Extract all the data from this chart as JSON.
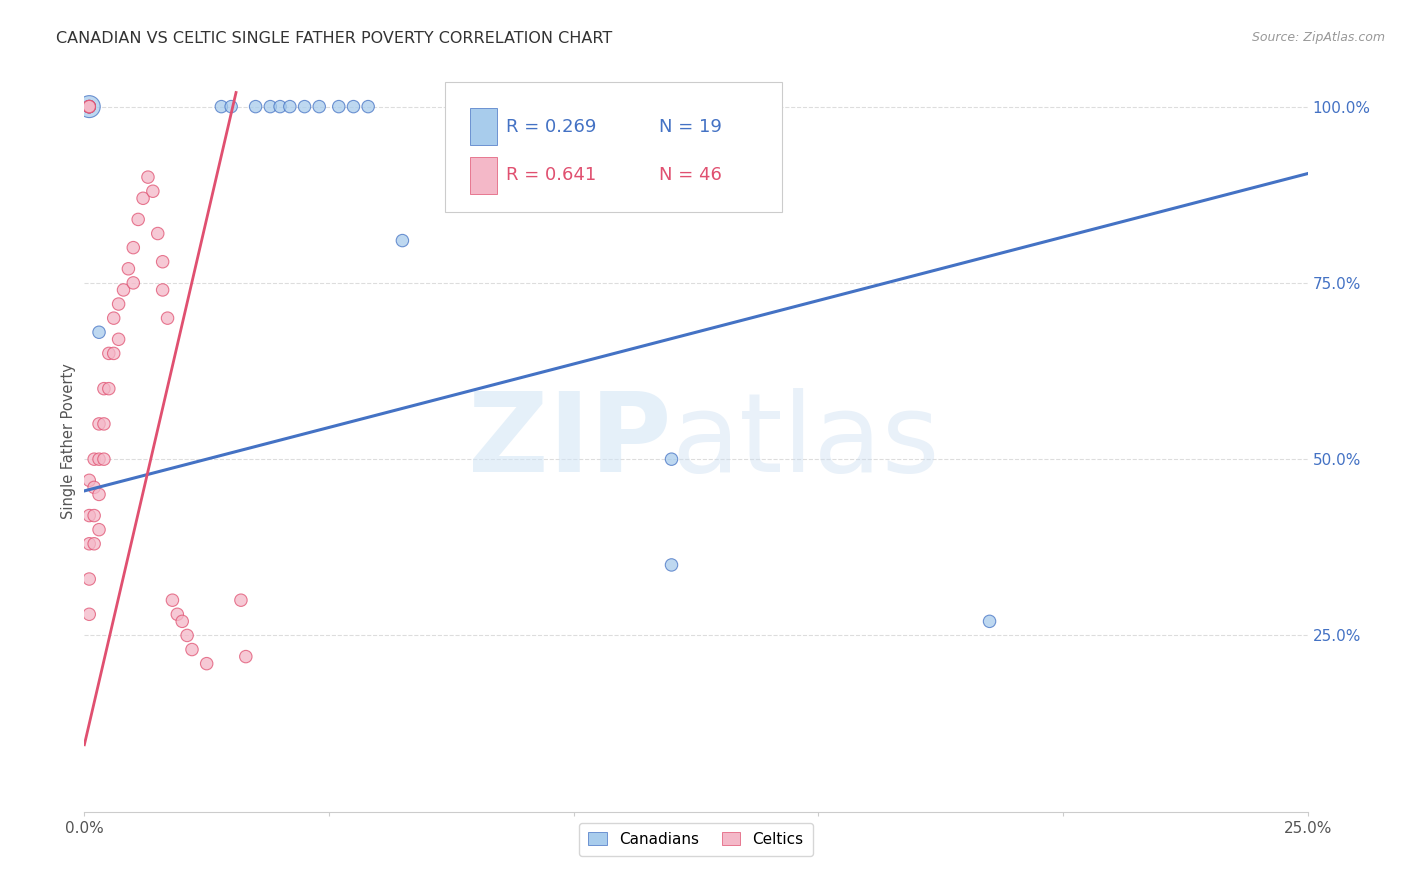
{
  "title": "CANADIAN VS CELTIC SINGLE FATHER POVERTY CORRELATION CHART",
  "source": "Source: ZipAtlas.com",
  "ylabel": "Single Father Poverty",
  "x_min": 0.0,
  "x_max": 0.25,
  "y_min": 0.0,
  "y_max": 1.05,
  "canadian_R": 0.269,
  "canadian_N": 19,
  "celtic_R": 0.641,
  "celtic_N": 46,
  "canadian_color": "#a8ccec",
  "celtic_color": "#f4b8c8",
  "canadian_line_color": "#4472c4",
  "celtic_line_color": "#e05070",
  "background_color": "#ffffff",
  "grid_color": "#dddddd",
  "blue_line_x0": 0.0,
  "blue_line_y0": 0.455,
  "blue_line_x1": 0.25,
  "blue_line_y1": 0.905,
  "pink_line_x0": 0.0,
  "pink_line_y0": 0.095,
  "pink_line_x1": 0.031,
  "pink_line_y1": 1.02,
  "can_x": [
    0.001,
    0.001,
    0.001,
    0.003,
    0.028,
    0.03,
    0.035,
    0.038,
    0.04,
    0.042,
    0.045,
    0.048,
    0.052,
    0.055,
    0.058,
    0.065,
    0.12,
    0.12,
    0.185
  ],
  "can_y": [
    1.0,
    1.0,
    1.0,
    0.68,
    1.0,
    1.0,
    1.0,
    1.0,
    1.0,
    1.0,
    1.0,
    1.0,
    1.0,
    1.0,
    1.0,
    0.81,
    0.35,
    0.5,
    0.27
  ],
  "can_sizes": [
    250,
    80,
    80,
    80,
    80,
    80,
    80,
    80,
    80,
    80,
    80,
    80,
    80,
    80,
    80,
    80,
    80,
    80,
    80
  ],
  "cel_x": [
    0.001,
    0.001,
    0.001,
    0.001,
    0.001,
    0.001,
    0.001,
    0.001,
    0.001,
    0.002,
    0.002,
    0.002,
    0.002,
    0.003,
    0.003,
    0.003,
    0.003,
    0.004,
    0.004,
    0.004,
    0.005,
    0.005,
    0.006,
    0.006,
    0.007,
    0.007,
    0.008,
    0.009,
    0.01,
    0.01,
    0.011,
    0.012,
    0.013,
    0.014,
    0.015,
    0.016,
    0.016,
    0.017,
    0.018,
    0.019,
    0.02,
    0.021,
    0.022,
    0.025,
    0.032,
    0.033
  ],
  "cel_y": [
    1.0,
    1.0,
    1.0,
    1.0,
    0.47,
    0.42,
    0.38,
    0.33,
    0.28,
    0.5,
    0.46,
    0.42,
    0.38,
    0.55,
    0.5,
    0.45,
    0.4,
    0.6,
    0.55,
    0.5,
    0.65,
    0.6,
    0.7,
    0.65,
    0.72,
    0.67,
    0.74,
    0.77,
    0.8,
    0.75,
    0.84,
    0.87,
    0.9,
    0.88,
    0.82,
    0.78,
    0.74,
    0.7,
    0.3,
    0.28,
    0.27,
    0.25,
    0.23,
    0.21,
    0.3,
    0.22
  ],
  "cel_sizes": [
    80,
    80,
    80,
    80,
    80,
    80,
    80,
    80,
    80,
    80,
    80,
    80,
    80,
    80,
    80,
    80,
    80,
    80,
    80,
    80,
    80,
    80,
    80,
    80,
    80,
    80,
    80,
    80,
    80,
    80,
    80,
    80,
    80,
    80,
    80,
    80,
    80,
    80,
    80,
    80,
    80,
    80,
    80,
    80,
    80,
    80
  ]
}
